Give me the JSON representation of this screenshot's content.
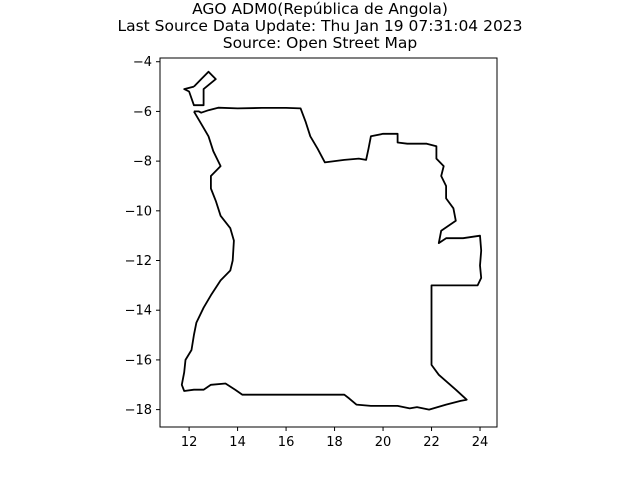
{
  "title": {
    "line1": "AGO ADM0(República de Angola)",
    "line2": "Last Source Data Update: Thu Jan 19 07:31:04 2023",
    "line3": "Source: Open Street Map"
  },
  "chart_data": {
    "type": "line",
    "xlim": [
      10.8,
      24.7
    ],
    "ylim": [
      -18.7,
      -3.85
    ],
    "x_ticks": [
      12,
      14,
      16,
      18,
      20,
      22,
      24
    ],
    "y_ticks": [
      -4,
      -6,
      -8,
      -10,
      -12,
      -14,
      -16,
      -18
    ],
    "grid": false,
    "colors": {
      "outline": "#000000",
      "axes": "#000000",
      "background": "#ffffff"
    },
    "series": [
      {
        "points": [
          [
            12.2,
            -5.0
          ],
          [
            12.5,
            -4.7
          ],
          [
            12.8,
            -4.4
          ],
          [
            13.1,
            -4.7
          ],
          [
            12.6,
            -5.1
          ],
          [
            12.6,
            -5.75
          ],
          [
            12.2,
            -5.75
          ],
          [
            12.0,
            -5.2
          ],
          [
            11.8,
            -5.1
          ],
          [
            12.2,
            -5.0
          ]
        ]
      },
      {
        "points": [
          [
            12.2,
            -6.0
          ],
          [
            12.4,
            -6.0
          ],
          [
            12.5,
            -6.05
          ],
          [
            12.8,
            -5.95
          ],
          [
            13.2,
            -5.85
          ],
          [
            14.0,
            -5.88
          ],
          [
            15.0,
            -5.86
          ],
          [
            16.0,
            -5.86
          ],
          [
            16.6,
            -5.88
          ],
          [
            16.8,
            -6.4
          ],
          [
            17.0,
            -7.0
          ],
          [
            17.3,
            -7.5
          ],
          [
            17.6,
            -8.05
          ],
          [
            18.0,
            -8.0
          ],
          [
            18.4,
            -7.95
          ],
          [
            19.0,
            -7.9
          ],
          [
            19.3,
            -7.95
          ],
          [
            19.4,
            -7.5
          ],
          [
            19.5,
            -7.0
          ],
          [
            20.0,
            -6.9
          ],
          [
            20.6,
            -6.9
          ],
          [
            20.6,
            -7.25
          ],
          [
            21.0,
            -7.3
          ],
          [
            21.8,
            -7.3
          ],
          [
            22.2,
            -7.4
          ],
          [
            22.2,
            -7.9
          ],
          [
            22.5,
            -8.2
          ],
          [
            22.4,
            -8.6
          ],
          [
            22.6,
            -9.0
          ],
          [
            22.6,
            -9.5
          ],
          [
            22.9,
            -9.9
          ],
          [
            23.0,
            -10.4
          ],
          [
            22.4,
            -10.8
          ],
          [
            22.3,
            -11.3
          ],
          [
            22.6,
            -11.1
          ],
          [
            23.3,
            -11.1
          ],
          [
            24.0,
            -11.0
          ],
          [
            24.05,
            -11.6
          ],
          [
            24.0,
            -12.2
          ],
          [
            24.05,
            -12.7
          ],
          [
            23.9,
            -13.0
          ],
          [
            22.0,
            -13.0
          ],
          [
            22.0,
            -16.2
          ],
          [
            22.3,
            -16.6
          ],
          [
            23.0,
            -17.2
          ],
          [
            23.45,
            -17.6
          ],
          [
            23.2,
            -17.65
          ],
          [
            22.6,
            -17.8
          ],
          [
            21.9,
            -18.0
          ],
          [
            21.4,
            -17.9
          ],
          [
            21.1,
            -17.95
          ],
          [
            20.6,
            -17.85
          ],
          [
            20.0,
            -17.85
          ],
          [
            19.5,
            -17.85
          ],
          [
            18.9,
            -17.8
          ],
          [
            18.6,
            -17.55
          ],
          [
            18.4,
            -17.4
          ],
          [
            17.0,
            -17.4
          ],
          [
            16.0,
            -17.4
          ],
          [
            15.0,
            -17.4
          ],
          [
            14.2,
            -17.4
          ],
          [
            13.9,
            -17.2
          ],
          [
            13.5,
            -16.95
          ],
          [
            12.9,
            -17.0
          ],
          [
            12.6,
            -17.2
          ],
          [
            12.2,
            -17.2
          ],
          [
            11.8,
            -17.25
          ],
          [
            11.7,
            -17.0
          ],
          [
            11.8,
            -16.5
          ],
          [
            11.85,
            -16.0
          ],
          [
            12.1,
            -15.6
          ],
          [
            12.2,
            -15.0
          ],
          [
            12.3,
            -14.5
          ],
          [
            12.6,
            -13.9
          ],
          [
            12.9,
            -13.4
          ],
          [
            13.3,
            -12.8
          ],
          [
            13.7,
            -12.4
          ],
          [
            13.8,
            -12.0
          ],
          [
            13.85,
            -11.2
          ],
          [
            13.7,
            -10.7
          ],
          [
            13.3,
            -10.2
          ],
          [
            13.1,
            -9.6
          ],
          [
            12.9,
            -9.1
          ],
          [
            12.9,
            -8.6
          ],
          [
            13.3,
            -8.2
          ],
          [
            13.0,
            -7.6
          ],
          [
            12.8,
            -7.0
          ],
          [
            12.5,
            -6.5
          ],
          [
            12.2,
            -6.0
          ]
        ]
      }
    ]
  }
}
